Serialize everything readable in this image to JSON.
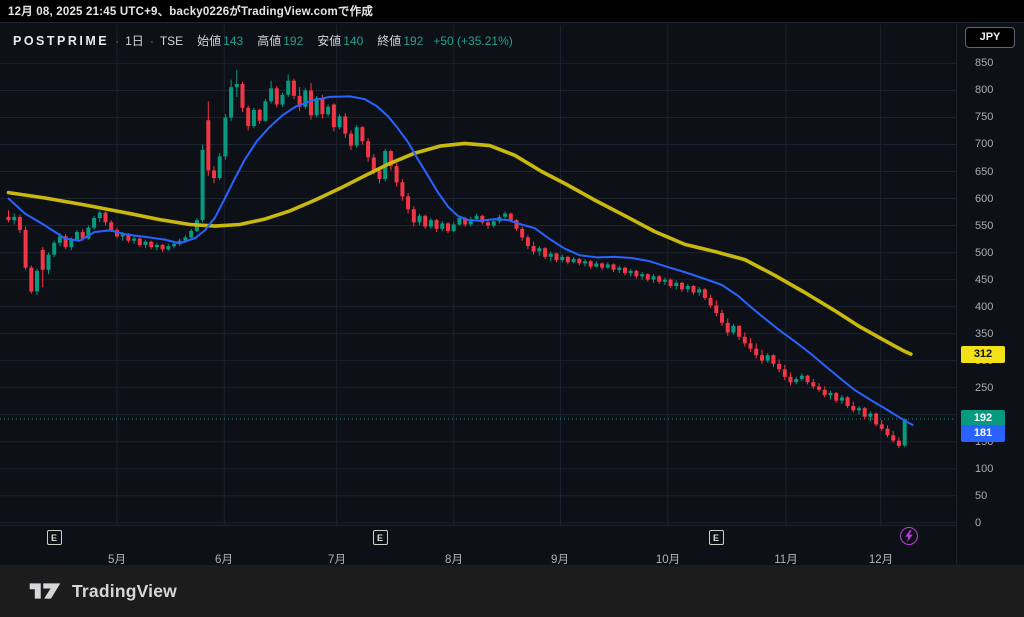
{
  "attribution": "12月 08, 2025 21:45 UTC+9、backy0226がTradingView.comで作成",
  "legend": {
    "symbol": "POSTPRIME",
    "separator": "·",
    "interval": "1日",
    "exchange": "TSE",
    "open_label": "始値",
    "open": "143",
    "high_label": "高値",
    "high": "192",
    "low_label": "安値",
    "low": "140",
    "close_label": "終値",
    "close": "192",
    "change": "+50 (+35.21%)"
  },
  "price_axis": {
    "currency_button": "JPY",
    "ticks": [
      850,
      800,
      750,
      700,
      650,
      600,
      550,
      500,
      450,
      400,
      350,
      300,
      250,
      200,
      150,
      100,
      50,
      0
    ],
    "ma_slow_badge": {
      "value": "312",
      "price": 312
    },
    "close_badge": {
      "value": "192",
      "price": 192
    },
    "ma_fast_badge": {
      "value": "181",
      "price": 181
    }
  },
  "time_axis": {
    "months": [
      {
        "label": "5月",
        "i": 19.0
      },
      {
        "label": "6月",
        "i": 37.8
      },
      {
        "label": "7月",
        "i": 57.5
      },
      {
        "label": "8月",
        "i": 78.0
      },
      {
        "label": "9月",
        "i": 96.7
      },
      {
        "label": "10月",
        "i": 115.5
      },
      {
        "label": "11月",
        "i": 136.2
      },
      {
        "label": "12月",
        "i": 152.8
      }
    ],
    "earnings_marker_glyph": "E",
    "earnings_marker_indices": [
      8,
      65,
      124
    ],
    "event_icon": {
      "name": "lightning",
      "i": 157.8
    }
  },
  "footer": {
    "brand": "TradingView"
  },
  "colors": {
    "bg": "#0d1117",
    "grid": "#1b2230",
    "up": "#089981",
    "down": "#f23645",
    "ma_fast": "#2962ff",
    "ma_slow": "#c9b90e",
    "badge_slow_bg": "#f2e118",
    "badge_slow_text": "#111111",
    "badge_fast_bg": "#2962ff",
    "badge_close_bg": "#089981",
    "badge_light_text": "#ffffff",
    "last_price_line": "#0a9981"
  },
  "chart_data": {
    "type": "candlestick",
    "title": "POSTPRIME · 1日 · TSE",
    "ylabel": "JPY",
    "ylim": [
      0,
      850
    ],
    "grid": true,
    "last_close": 192,
    "candles_ohlc": [
      [
        566,
        578,
        556,
        560
      ],
      [
        560,
        572,
        552,
        566
      ],
      [
        566,
        570,
        536,
        542
      ],
      [
        542,
        548,
        468,
        472
      ],
      [
        472,
        476,
        424,
        428
      ],
      [
        428,
        470,
        422,
        466
      ],
      [
        505,
        510,
        436,
        468
      ],
      [
        468,
        500,
        460,
        496
      ],
      [
        496,
        522,
        492,
        518
      ],
      [
        518,
        536,
        512,
        530
      ],
      [
        530,
        534,
        506,
        510
      ],
      [
        510,
        528,
        504,
        524
      ],
      [
        524,
        542,
        520,
        538
      ],
      [
        538,
        544,
        522,
        526
      ],
      [
        526,
        550,
        524,
        546
      ],
      [
        546,
        568,
        542,
        564
      ],
      [
        564,
        578,
        556,
        574
      ],
      [
        574,
        576,
        550,
        556
      ],
      [
        556,
        560,
        538,
        542
      ],
      [
        542,
        546,
        526,
        530
      ],
      [
        530,
        538,
        522,
        534
      ],
      [
        534,
        536,
        518,
        522
      ],
      [
        522,
        530,
        516,
        526
      ],
      [
        526,
        528,
        510,
        514
      ],
      [
        514,
        524,
        508,
        520
      ],
      [
        520,
        522,
        506,
        510
      ],
      [
        510,
        518,
        504,
        514
      ],
      [
        514,
        516,
        502,
        506
      ],
      [
        506,
        516,
        504,
        512
      ],
      [
        512,
        520,
        508,
        516
      ],
      [
        516,
        526,
        512,
        522
      ],
      [
        522,
        532,
        518,
        528
      ],
      [
        528,
        544,
        526,
        540
      ],
      [
        540,
        564,
        538,
        560
      ],
      [
        560,
        700,
        556,
        690
      ],
      [
        745,
        780,
        642,
        652
      ],
      [
        652,
        660,
        628,
        638
      ],
      [
        638,
        684,
        634,
        678
      ],
      [
        678,
        756,
        672,
        750
      ],
      [
        750,
        820,
        744,
        806
      ],
      [
        806,
        838,
        788,
        812
      ],
      [
        812,
        816,
        760,
        768
      ],
      [
        768,
        772,
        726,
        734
      ],
      [
        734,
        768,
        730,
        764
      ],
      [
        764,
        766,
        738,
        744
      ],
      [
        744,
        784,
        742,
        780
      ],
      [
        780,
        818,
        776,
        804
      ],
      [
        804,
        808,
        768,
        774
      ],
      [
        774,
        796,
        770,
        792
      ],
      [
        792,
        830,
        788,
        818
      ],
      [
        818,
        822,
        784,
        790
      ],
      [
        790,
        806,
        762,
        770
      ],
      [
        770,
        804,
        766,
        800
      ],
      [
        800,
        814,
        746,
        754
      ],
      [
        754,
        790,
        750,
        786
      ],
      [
        786,
        792,
        748,
        756
      ],
      [
        756,
        774,
        752,
        770
      ],
      [
        774,
        776,
        724,
        732
      ],
      [
        732,
        756,
        728,
        752
      ],
      [
        752,
        758,
        712,
        720
      ],
      [
        720,
        726,
        690,
        698
      ],
      [
        698,
        736,
        694,
        732
      ],
      [
        732,
        734,
        700,
        706
      ],
      [
        706,
        712,
        668,
        676
      ],
      [
        676,
        682,
        644,
        652
      ],
      [
        652,
        658,
        628,
        636
      ],
      [
        636,
        692,
        632,
        688
      ],
      [
        688,
        690,
        652,
        660
      ],
      [
        660,
        666,
        622,
        630
      ],
      [
        630,
        636,
        596,
        604
      ],
      [
        604,
        610,
        572,
        580
      ],
      [
        580,
        586,
        548,
        556
      ],
      [
        556,
        572,
        550,
        568
      ],
      [
        568,
        570,
        544,
        548
      ],
      [
        548,
        564,
        544,
        560
      ],
      [
        560,
        562,
        538,
        544
      ],
      [
        544,
        558,
        540,
        554
      ],
      [
        554,
        556,
        536,
        540
      ],
      [
        540,
        556,
        538,
        552
      ],
      [
        552,
        568,
        550,
        564
      ],
      [
        564,
        566,
        548,
        552
      ],
      [
        552,
        566,
        548,
        562
      ],
      [
        562,
        572,
        558,
        568
      ],
      [
        568,
        570,
        552,
        556
      ],
      [
        556,
        562,
        544,
        550
      ],
      [
        550,
        562,
        546,
        558
      ],
      [
        558,
        570,
        554,
        566
      ],
      [
        566,
        576,
        562,
        572
      ],
      [
        572,
        574,
        556,
        560
      ],
      [
        560,
        562,
        540,
        544
      ],
      [
        544,
        548,
        522,
        528
      ],
      [
        528,
        532,
        506,
        512
      ],
      [
        512,
        520,
        496,
        502
      ],
      [
        502,
        512,
        494,
        508
      ],
      [
        508,
        510,
        488,
        492
      ],
      [
        492,
        502,
        484,
        498
      ],
      [
        498,
        500,
        482,
        486
      ],
      [
        486,
        496,
        482,
        492
      ],
      [
        492,
        494,
        478,
        482
      ],
      [
        482,
        492,
        480,
        488
      ],
      [
        488,
        490,
        476,
        480
      ],
      [
        480,
        488,
        474,
        484
      ],
      [
        484,
        486,
        470,
        474
      ],
      [
        474,
        484,
        472,
        480
      ],
      [
        480,
        482,
        468,
        472
      ],
      [
        472,
        482,
        470,
        478
      ],
      [
        478,
        480,
        464,
        468
      ],
      [
        468,
        476,
        462,
        472
      ],
      [
        472,
        474,
        458,
        462
      ],
      [
        462,
        470,
        456,
        466
      ],
      [
        466,
        468,
        452,
        456
      ],
      [
        456,
        464,
        450,
        460
      ],
      [
        460,
        462,
        446,
        450
      ],
      [
        450,
        460,
        444,
        456
      ],
      [
        456,
        458,
        442,
        446
      ],
      [
        446,
        454,
        440,
        450
      ],
      [
        450,
        452,
        434,
        438
      ],
      [
        438,
        448,
        432,
        444
      ],
      [
        444,
        446,
        428,
        432
      ],
      [
        432,
        442,
        426,
        438
      ],
      [
        438,
        440,
        422,
        426
      ],
      [
        426,
        436,
        420,
        432
      ],
      [
        432,
        434,
        412,
        416
      ],
      [
        416,
        422,
        398,
        402
      ],
      [
        402,
        412,
        382,
        388
      ],
      [
        388,
        394,
        364,
        370
      ],
      [
        370,
        378,
        346,
        352
      ],
      [
        352,
        368,
        348,
        364
      ],
      [
        364,
        366,
        338,
        344
      ],
      [
        344,
        352,
        326,
        332
      ],
      [
        332,
        342,
        316,
        322
      ],
      [
        322,
        332,
        304,
        310
      ],
      [
        310,
        320,
        294,
        300
      ],
      [
        300,
        314,
        296,
        310
      ],
      [
        310,
        312,
        288,
        294
      ],
      [
        294,
        302,
        278,
        284
      ],
      [
        284,
        292,
        264,
        270
      ],
      [
        270,
        278,
        254,
        260
      ],
      [
        260,
        270,
        256,
        266
      ],
      [
        266,
        276,
        262,
        272
      ],
      [
        272,
        274,
        256,
        260
      ],
      [
        260,
        266,
        248,
        252
      ],
      [
        252,
        258,
        242,
        246
      ],
      [
        246,
        252,
        232,
        236
      ],
      [
        236,
        244,
        228,
        240
      ],
      [
        240,
        242,
        222,
        226
      ],
      [
        226,
        236,
        220,
        232
      ],
      [
        232,
        234,
        212,
        216
      ],
      [
        216,
        224,
        204,
        208
      ],
      [
        208,
        216,
        200,
        212
      ],
      [
        212,
        214,
        192,
        196
      ],
      [
        196,
        206,
        188,
        202
      ],
      [
        202,
        204,
        178,
        182
      ],
      [
        182,
        190,
        170,
        174
      ],
      [
        174,
        180,
        158,
        162
      ],
      [
        162,
        170,
        148,
        152
      ],
      [
        152,
        158,
        138,
        142
      ],
      [
        143,
        192,
        140,
        192
      ]
    ],
    "ma_fast": {
      "name": "ma-fast-blue",
      "color": "#2962ff",
      "last_value": 181,
      "points": [
        [
          0,
          600
        ],
        [
          2.9,
          572
        ],
        [
          6.4,
          550
        ],
        [
          9.9,
          526
        ],
        [
          12.5,
          522
        ],
        [
          15.1,
          538
        ],
        [
          17.8,
          541
        ],
        [
          20.4,
          534
        ],
        [
          23.9,
          529
        ],
        [
          27.4,
          524
        ],
        [
          30,
          517
        ],
        [
          32.7,
          527
        ],
        [
          34.4,
          541
        ],
        [
          36.2,
          565
        ],
        [
          37.9,
          600
        ],
        [
          39.7,
          638
        ],
        [
          41.4,
          672
        ],
        [
          43.5,
          706
        ],
        [
          45.8,
          733
        ],
        [
          48.1,
          755
        ],
        [
          50.3,
          770
        ],
        [
          53.1,
          781
        ],
        [
          56.3,
          788
        ],
        [
          59.8,
          789
        ],
        [
          62.4,
          784
        ],
        [
          64.5,
          771
        ],
        [
          66.5,
          752
        ],
        [
          68.2,
          730
        ],
        [
          70,
          704
        ],
        [
          71.7,
          673
        ],
        [
          73.5,
          642
        ],
        [
          75.2,
          612
        ],
        [
          77,
          585
        ],
        [
          78.7,
          568
        ],
        [
          80.5,
          560
        ],
        [
          82.6,
          559
        ],
        [
          85.2,
          562
        ],
        [
          87.5,
          560
        ],
        [
          89.9,
          552
        ],
        [
          92.2,
          545
        ],
        [
          94.8,
          525
        ],
        [
          97.5,
          507
        ],
        [
          100.1,
          495
        ],
        [
          103.1,
          491
        ],
        [
          106.2,
          492
        ],
        [
          109.2,
          490
        ],
        [
          112.3,
          484
        ],
        [
          115.5,
          473
        ],
        [
          118.7,
          463
        ],
        [
          121.8,
          452
        ],
        [
          125,
          440
        ],
        [
          127.8,
          420
        ],
        [
          130.2,
          398
        ],
        [
          132.7,
          376
        ],
        [
          135.1,
          356
        ],
        [
          137.7,
          336
        ],
        [
          140.4,
          314
        ],
        [
          143,
          291
        ],
        [
          145.6,
          268
        ],
        [
          148.2,
          246
        ],
        [
          150.9,
          228
        ],
        [
          153.5,
          212
        ],
        [
          155.6,
          198
        ],
        [
          157.5,
          186
        ],
        [
          158.4,
          181
        ]
      ]
    },
    "ma_slow": {
      "name": "ma-slow-yellow",
      "color": "#c9b90e",
      "last_value": 312,
      "points": [
        [
          0,
          611
        ],
        [
          6.4,
          601
        ],
        [
          13.4,
          588
        ],
        [
          20.4,
          574
        ],
        [
          26.5,
          561
        ],
        [
          31.8,
          552
        ],
        [
          36.2,
          549
        ],
        [
          40.5,
          552
        ],
        [
          44.9,
          562
        ],
        [
          49.3,
          577
        ],
        [
          53.7,
          597
        ],
        [
          58.1,
          619
        ],
        [
          62.4,
          642
        ],
        [
          66.8,
          665
        ],
        [
          71.2,
          684
        ],
        [
          75.6,
          697
        ],
        [
          79.9,
          702
        ],
        [
          84.3,
          698
        ],
        [
          88.7,
          680
        ],
        [
          93.4,
          650
        ],
        [
          97.8,
          626
        ],
        [
          102.7,
          597
        ],
        [
          108,
          568
        ],
        [
          113.2,
          539
        ],
        [
          118.5,
          515
        ],
        [
          123.7,
          502
        ],
        [
          129,
          487
        ],
        [
          134.2,
          458
        ],
        [
          139.5,
          426
        ],
        [
          144.7,
          393
        ],
        [
          149.1,
          363
        ],
        [
          153.5,
          337
        ],
        [
          157,
          317
        ],
        [
          158.1,
          312
        ]
      ]
    }
  }
}
